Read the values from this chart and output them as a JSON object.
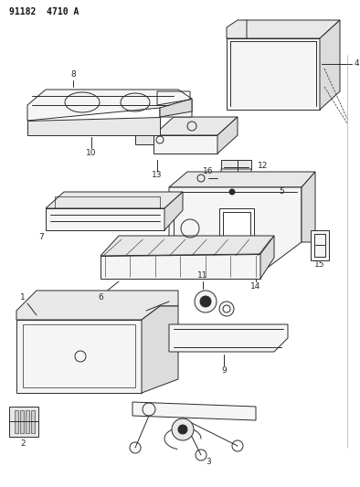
{
  "title": "91182  4710 A",
  "bg_color": "#ffffff",
  "lc": "#2a2a2a",
  "figsize": [
    3.94,
    5.33
  ],
  "dpi": 100
}
